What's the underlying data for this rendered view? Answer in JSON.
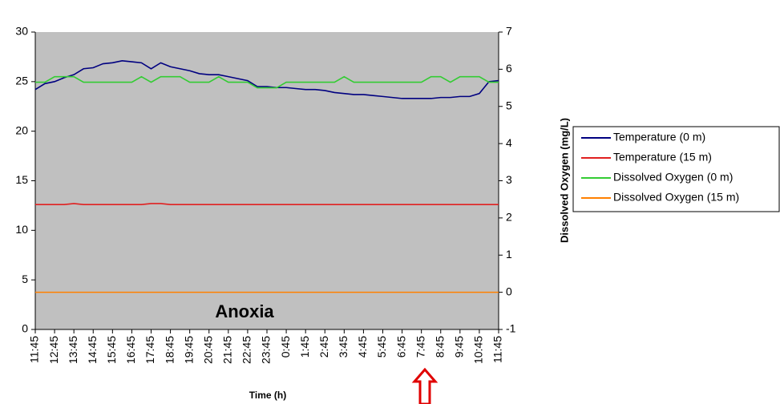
{
  "chart_data": {
    "type": "line",
    "categories": [
      "11:45",
      null,
      "12:45",
      null,
      "13:45",
      null,
      "14:45",
      null,
      "15:45",
      null,
      "16:45",
      null,
      "17:45",
      null,
      "18:45",
      null,
      "19:45",
      null,
      "20:45",
      null,
      "21:45",
      null,
      "22:45",
      null,
      "23:45",
      null,
      "0:45",
      null,
      "1:45",
      null,
      "2:45",
      null,
      "3:45",
      null,
      "4:45",
      null,
      "5:45",
      null,
      "6:45",
      null,
      "7:45",
      null,
      "8:45",
      null,
      "9:45",
      null,
      "10:45",
      null,
      "11:45"
    ],
    "series": [
      {
        "name": "Temperature (0 m)",
        "color": "#000080",
        "values": [
          24.2,
          24.8,
          25.0,
          25.4,
          25.7,
          26.3,
          26.4,
          26.8,
          26.9,
          27.1,
          27.0,
          26.9,
          26.3,
          26.9,
          26.5,
          26.3,
          26.1,
          25.8,
          25.7,
          25.7,
          25.5,
          25.3,
          25.1,
          24.5,
          24.5,
          24.4,
          24.4,
          24.3,
          24.2,
          24.2,
          24.1,
          23.9,
          23.8,
          23.7,
          23.7,
          23.6,
          23.5,
          23.4,
          23.3,
          23.3,
          23.3,
          23.3,
          23.4,
          23.4,
          23.5,
          23.5,
          23.8,
          25.0,
          25.1
        ]
      },
      {
        "name": "Temperature (15 m)",
        "color": "#e02020",
        "values": [
          12.6,
          12.6,
          12.6,
          12.6,
          12.7,
          12.6,
          12.6,
          12.6,
          12.6,
          12.6,
          12.6,
          12.6,
          12.7,
          12.7,
          12.6,
          12.6,
          12.6,
          12.6,
          12.6,
          12.6,
          12.6,
          12.6,
          12.6,
          12.6,
          12.6,
          12.6,
          12.6,
          12.6,
          12.6,
          12.6,
          12.6,
          12.6,
          12.6,
          12.6,
          12.6,
          12.6,
          12.6,
          12.6,
          12.6,
          12.6,
          12.6,
          12.6,
          12.6,
          12.6,
          12.6,
          12.6,
          12.6,
          12.6,
          12.6
        ]
      },
      {
        "name": "Dissolved Oxygen (0 m)",
        "color": "#33cc33",
        "axis": "y2",
        "values": [
          5.65,
          5.65,
          5.8,
          5.8,
          5.8,
          5.65,
          5.65,
          5.65,
          5.65,
          5.65,
          5.65,
          5.8,
          5.65,
          5.8,
          5.8,
          5.8,
          5.65,
          5.65,
          5.65,
          5.8,
          5.65,
          5.65,
          5.65,
          5.5,
          5.5,
          5.5,
          5.65,
          5.65,
          5.65,
          5.65,
          5.65,
          5.65,
          5.8,
          5.65,
          5.65,
          5.65,
          5.65,
          5.65,
          5.65,
          5.65,
          5.65,
          5.8,
          5.8,
          5.65,
          5.8,
          5.8,
          5.8,
          5.65,
          5.65
        ]
      },
      {
        "name": "Dissolved Oxygen (15 m)",
        "color": "#ff8000",
        "axis": "y2",
        "values": [
          0,
          0,
          0,
          0,
          0,
          0,
          0,
          0,
          0,
          0,
          0,
          0,
          0,
          0,
          0,
          0,
          0,
          0,
          0,
          0,
          0,
          0,
          0,
          0,
          0,
          0,
          0,
          0,
          0,
          0,
          0,
          0,
          0,
          0,
          0,
          0,
          0,
          0,
          0,
          0,
          0,
          0,
          0,
          0,
          0,
          0,
          0,
          0,
          0
        ]
      }
    ],
    "ylim": [
      0,
      30
    ],
    "yticks": [
      0,
      5,
      10,
      15,
      20,
      25,
      30
    ],
    "y2lim": [
      -1,
      7
    ],
    "y2ticks": [
      -1,
      0,
      1,
      2,
      3,
      4,
      5,
      6,
      7
    ],
    "y2label": "Dissolved Oxygen (mg/L)",
    "xlabel": "Time (h)",
    "annotation": "Anoxia",
    "plot_background": "#c0c0c0",
    "grid": false
  }
}
